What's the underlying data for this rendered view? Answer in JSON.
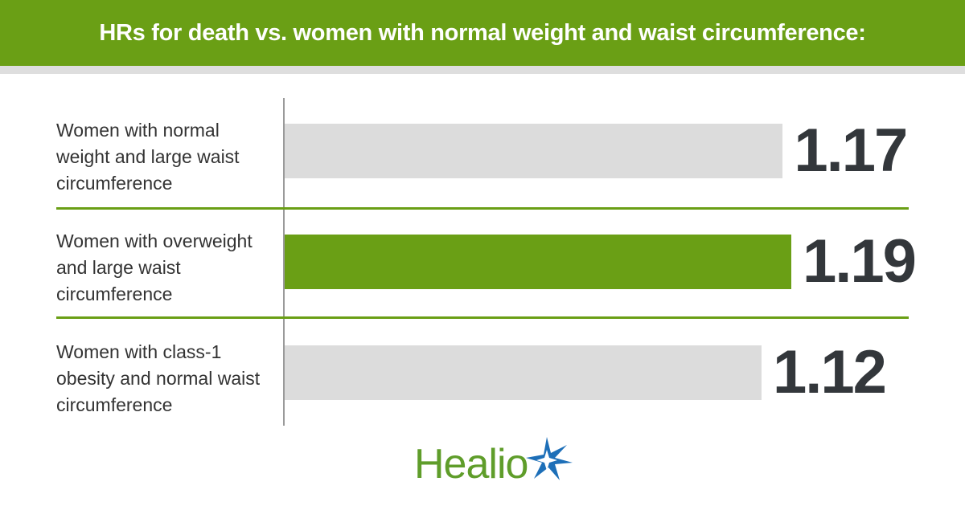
{
  "chart_data": {
    "type": "bar",
    "orientation": "horizontal",
    "title": "HRs for death vs. women with normal weight and waist circumference:",
    "categories": [
      "Women with normal weight and large waist circumference",
      "Women with overweight and large waist circumference",
      "Women with class-1 obesity and normal waist circumference"
    ],
    "values": [
      1.17,
      1.19,
      1.12
    ],
    "colors": [
      "#dcdcdc",
      "#6a9f15",
      "#dcdcdc"
    ]
  },
  "logo": "Healio"
}
